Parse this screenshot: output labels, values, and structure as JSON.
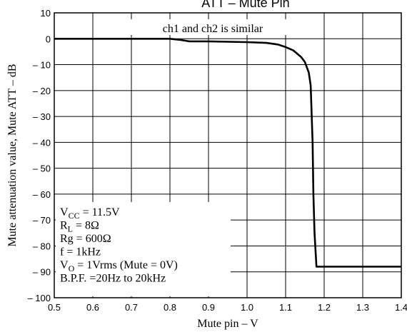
{
  "chart_data": {
    "type": "line",
    "title": "ATT – Mute Pin",
    "xlabel": "Mute pin  –  V",
    "ylabel": "Mute attenuation value, Mute ATT  –  dB",
    "xlim": [
      0.5,
      1.4
    ],
    "ylim": [
      -100,
      10
    ],
    "grid": true,
    "x_ticks": [
      "0.5",
      "0.6",
      "0.7",
      "0.8",
      "0.9",
      "1.0",
      "1.1",
      "1.2",
      "1.3",
      "1.4"
    ],
    "y_ticks": [
      "10",
      "0",
      "– 10",
      "– 20",
      "– 30",
      "– 40",
      "– 50",
      "– 60",
      "– 70",
      "– 80",
      "– 90",
      "– 100"
    ],
    "annotation": "ch1 and ch2 is similar",
    "conditions": [
      {
        "main": "V",
        "sub": "CC",
        "rest": " = 11.5V"
      },
      {
        "main": "R",
        "sub": "L",
        "rest": " = 8Ω"
      },
      {
        "main": "Rg = 600Ω",
        "sub": "",
        "rest": ""
      },
      {
        "main": "f = 1kHz",
        "sub": "",
        "rest": ""
      },
      {
        "main": "V",
        "sub": "O",
        "rest": " = 1Vrms (Mute = 0V)"
      },
      {
        "main": "B.P.F. =20Hz to 20kHz",
        "sub": "",
        "rest": ""
      }
    ],
    "series": [
      {
        "x": [
          0.5,
          0.6,
          0.7,
          0.8,
          0.83,
          0.85,
          0.9,
          1.0,
          1.05,
          1.08,
          1.1,
          1.12,
          1.14,
          1.15,
          1.16,
          1.165,
          1.17,
          1.172,
          1.175,
          1.18,
          1.4
        ],
        "y": [
          0,
          0,
          0,
          0,
          -0.5,
          -1,
          -1,
          -1.3,
          -1.6,
          -2.2,
          -3.2,
          -4.5,
          -7,
          -9,
          -13,
          -18,
          -40,
          -60,
          -75,
          -88,
          -88
        ]
      }
    ]
  }
}
